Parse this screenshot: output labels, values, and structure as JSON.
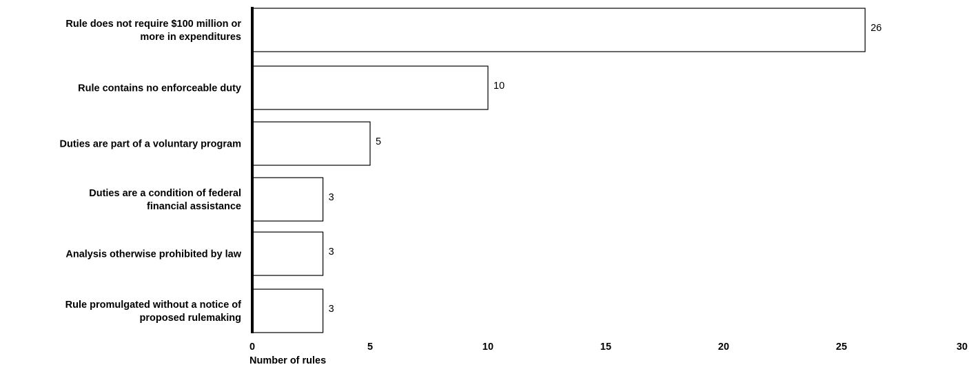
{
  "chart_data": {
    "type": "bar",
    "orientation": "horizontal",
    "title": "",
    "xlabel": "Number of rules",
    "ylabel": "",
    "xlim": [
      0,
      30
    ],
    "x_ticks": [
      0,
      5,
      10,
      15,
      20,
      25,
      30
    ],
    "grid": false,
    "categories": [
      [
        "Rule does not require $100 million or",
        "more in expenditures"
      ],
      [
        "Rule contains no enforceable duty"
      ],
      [
        "Duties are part of a voluntary program"
      ],
      [
        "Duties are a condition of federal",
        "financial assistance"
      ],
      [
        "Analysis otherwise prohibited by law"
      ],
      [
        "Rule promulgated without a notice of",
        "proposed rulemaking"
      ]
    ],
    "values": [
      26,
      10,
      5,
      3,
      3,
      3
    ],
    "data_labels": [
      "26",
      "10",
      "5",
      "3",
      "3",
      "3"
    ],
    "colors": {
      "bar_fill": "#ffffff",
      "bar_stroke": "#000000",
      "axis": "#000000"
    }
  }
}
